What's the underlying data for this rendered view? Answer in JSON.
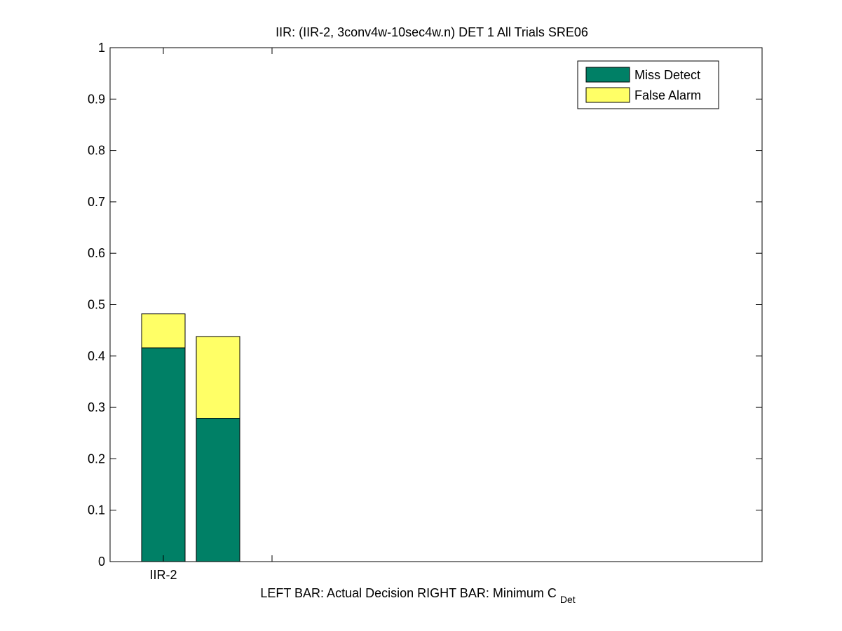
{
  "chart_data": {
    "type": "bar",
    "stacked": true,
    "title": "IIR: (IIR-2, 3conv4w-10sec4w.n) DET 1 All Trials SRE06",
    "xlabel_parts": [
      "LEFT BAR: Actual Decision",
      "RIGHT BAR: Minimum C",
      "Det"
    ],
    "ylabel": "",
    "ylim": [
      0,
      1
    ],
    "yticks": [
      "0",
      "0.1",
      "0.2",
      "0.3",
      "0.4",
      "0.5",
      "0.6",
      "0.7",
      "0.8",
      "0.9",
      "1"
    ],
    "categories": [
      "IIR-2"
    ],
    "bars": [
      {
        "role": "actual_decision",
        "category": "IIR-2",
        "miss_detect": 0.416,
        "false_alarm": 0.066,
        "total": 0.482
      },
      {
        "role": "minimum_cdet",
        "category": "IIR-2",
        "miss_detect": 0.279,
        "false_alarm": 0.159,
        "total": 0.438
      }
    ],
    "series": [
      {
        "name": "Miss Detect",
        "color": "#008066"
      },
      {
        "name": "False Alarm",
        "color": "#ffff66"
      }
    ],
    "legend_position": "top-right",
    "grid": false
  }
}
